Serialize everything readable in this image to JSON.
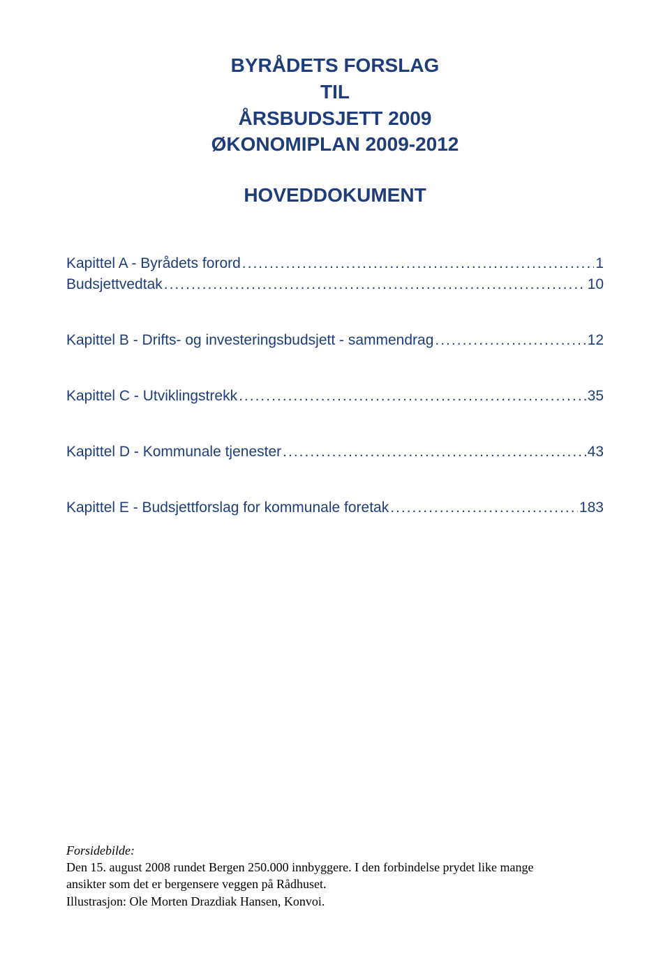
{
  "header": {
    "line1": "BYRÅDETS FORSLAG",
    "line2": "TIL",
    "line3": "ÅRSBUDSJETT 2009",
    "line4": "ØKONOMIPLAN 2009-2012",
    "subtitle": "HOVEDDOKUMENT"
  },
  "toc": [
    {
      "label": "Kapittel A - Byrådets forord",
      "page": "1",
      "spacer_after": "small"
    },
    {
      "label": "Budsjettvedtak",
      "page": "10",
      "spacer_after": "large"
    },
    {
      "label": "Kapittel B - Drifts- og investeringsbudsjett - sammendrag",
      "page": "12",
      "spacer_after": "large"
    },
    {
      "label": "Kapittel C - Utviklingstrekk",
      "page": "35",
      "spacer_after": "large"
    },
    {
      "label": "Kapittel D - Kommunale tjenester",
      "page": "43",
      "spacer_after": "large"
    },
    {
      "label": "Kapittel E - Budsjettforslag for kommunale foretak",
      "page": "183",
      "spacer_after": "none"
    }
  ],
  "footer": {
    "label": "Forsidebilde:",
    "text_line1": "Den 15. august 2008 rundet Bergen 250.000 innbyggere. I den forbindelse prydet like mange",
    "text_line2": "ansikter som det er bergensere veggen på Rådhuset.",
    "text_line3": "Illustrasjon: Ole Morten Drazdiak Hansen, Konvoi."
  },
  "colors": {
    "heading": "#1f3d7a",
    "body": "#000000",
    "background": "#ffffff"
  },
  "typography": {
    "heading_font": "Arial",
    "heading_size_pt": 21,
    "toc_font": "Arial",
    "toc_size_pt": 16,
    "footer_font": "Times New Roman",
    "footer_size_pt": 13
  }
}
